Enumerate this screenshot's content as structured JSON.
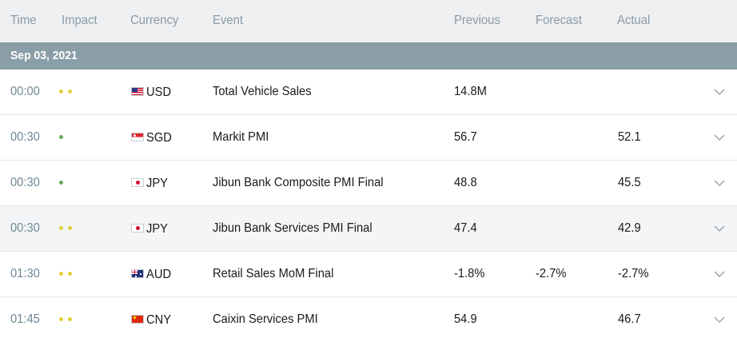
{
  "header": {
    "time": "Time",
    "impact": "Impact",
    "currency": "Currency",
    "event": "Event",
    "previous": "Previous",
    "forecast": "Forecast",
    "actual": "Actual"
  },
  "date_label": "Sep 03, 2021",
  "colors": {
    "impact_medium": "#e2d03a",
    "impact_low": "#6aa84f"
  },
  "rows": [
    {
      "time": "00:00",
      "impact": "medium",
      "impact_dots": 2,
      "currency": "USD",
      "flag": "us-flag",
      "event": "Total Vehicle Sales",
      "previous": "14.8M",
      "forecast": "",
      "actual": ""
    },
    {
      "time": "00:30",
      "impact": "low",
      "impact_dots": 1,
      "currency": "SGD",
      "flag": "sg-flag",
      "event": "Markit PMI",
      "previous": "56.7",
      "forecast": "",
      "actual": "52.1"
    },
    {
      "time": "00:30",
      "impact": "low",
      "impact_dots": 1,
      "currency": "JPY",
      "flag": "jp-flag",
      "event": "Jibun Bank Composite PMI Final",
      "previous": "48.8",
      "forecast": "",
      "actual": "45.5"
    },
    {
      "time": "00:30",
      "impact": "medium",
      "impact_dots": 2,
      "currency": "JPY",
      "flag": "jp-flag",
      "event": "Jibun Bank Services PMI Final",
      "previous": "47.4",
      "forecast": "",
      "actual": "42.9"
    },
    {
      "time": "01:30",
      "impact": "medium",
      "impact_dots": 2,
      "currency": "AUD",
      "flag": "au-flag",
      "event": "Retail Sales MoM Final",
      "previous": "-1.8%",
      "forecast": "-2.7%",
      "actual": "-2.7%"
    },
    {
      "time": "01:45",
      "impact": "medium",
      "impact_dots": 2,
      "currency": "CNY",
      "flag": "cn-flag",
      "event": "Caixin Services PMI",
      "previous": "54.9",
      "forecast": "",
      "actual": "46.7"
    }
  ]
}
